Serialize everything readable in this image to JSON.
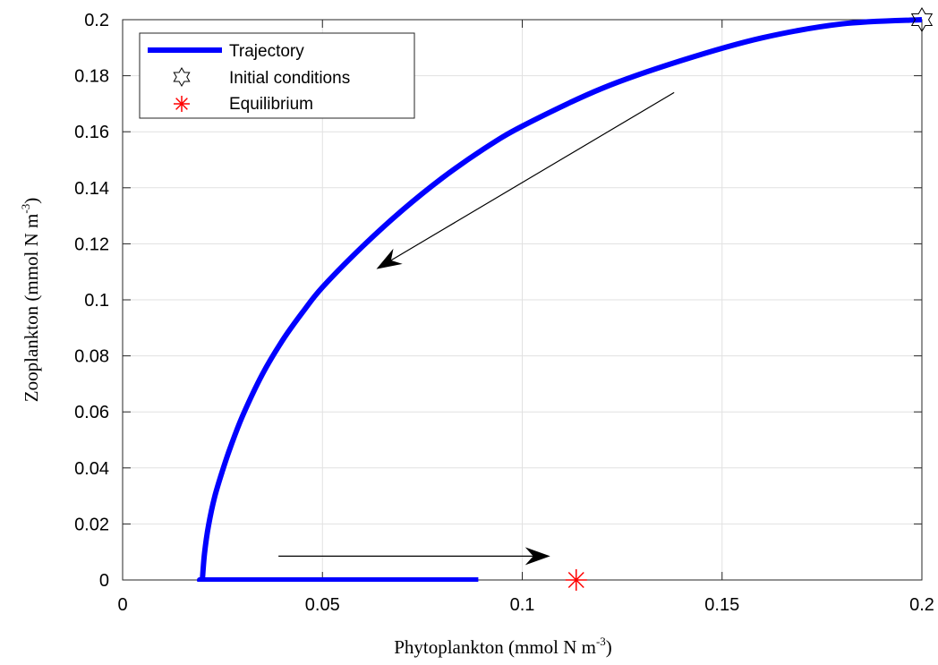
{
  "chart_data": {
    "type": "line",
    "xlabel": "Phytoplankton (mmol N m",
    "xlabel_sup": "-3",
    "xlabel_end": ")",
    "ylabel": "Zooplankton (mmol N m",
    "ylabel_sup": "-3",
    "ylabel_end": ")",
    "xlim": [
      0,
      0.2
    ],
    "ylim": [
      0,
      0.2
    ],
    "grid": true,
    "legend_placement": "top-left",
    "x_ticks": [
      0,
      0.05,
      0.1,
      0.15,
      0.2
    ],
    "x_tick_labels": [
      "0",
      "0.05",
      "0.1",
      "0.15",
      "0.2"
    ],
    "y_ticks": [
      0,
      0.02,
      0.04,
      0.06,
      0.08,
      0.1,
      0.12,
      0.14,
      0.16,
      0.18,
      0.2
    ],
    "y_tick_labels": [
      "0",
      "0.02",
      "0.04",
      "0.06",
      "0.08",
      "0.1",
      "0.12",
      "0.14",
      "0.16",
      "0.18",
      "0.2"
    ],
    "series": [
      {
        "name": "Trajectory",
        "color": "#0000ff",
        "x": [
          0.2,
          0.18,
          0.16,
          0.14,
          0.12,
          0.1,
          0.09,
          0.08,
          0.07,
          0.06,
          0.05,
          0.045,
          0.04,
          0.035,
          0.03,
          0.027,
          0.025,
          0.023,
          0.0215,
          0.0205,
          0.02,
          0.02,
          0.03,
          0.05,
          0.07,
          0.089
        ],
        "y": [
          0.2,
          0.1985,
          0.1935,
          0.1855,
          0.1755,
          0.162,
          0.1535,
          0.1435,
          0.132,
          0.119,
          0.1045,
          0.0955,
          0.0855,
          0.0735,
          0.0585,
          0.0475,
          0.039,
          0.0295,
          0.0195,
          0.0095,
          0.001,
          0.0,
          0.0,
          0.0,
          0.0,
          0.0
        ]
      }
    ],
    "markers": [
      {
        "name": "Initial conditions",
        "symbol": "hexagram",
        "color": "#000000",
        "x": 0.2,
        "y": 0.2
      },
      {
        "name": "Equilibrium",
        "symbol": "asterisk",
        "color": "#ff0000",
        "x": 0.1135,
        "y": 0.0
      }
    ],
    "arrows": [
      {
        "from": [
          0.138,
          0.174
        ],
        "to": [
          0.0635,
          0.111
        ]
      },
      {
        "from": [
          0.039,
          0.0085
        ],
        "to": [
          0.107,
          0.0085
        ]
      }
    ]
  },
  "legend": {
    "items": [
      {
        "label": "Trajectory",
        "icon": "thick-line"
      },
      {
        "label": "Initial conditions",
        "icon": "hexagram-icon"
      },
      {
        "label": "Equilibrium",
        "icon": "asterisk-icon"
      }
    ]
  }
}
